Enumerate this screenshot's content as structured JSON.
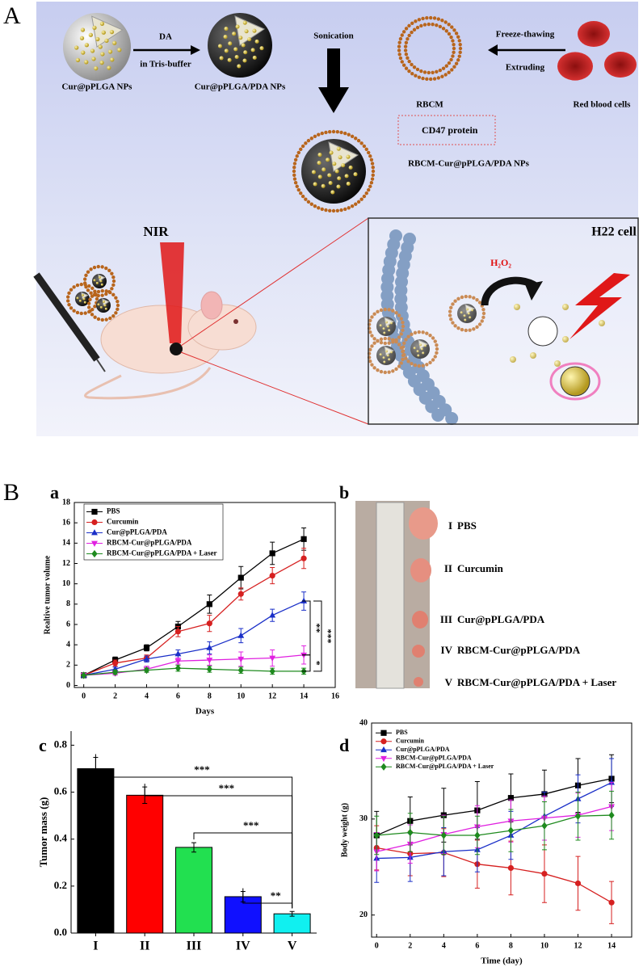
{
  "figure": {
    "panel_A": "A",
    "panel_B": "B",
    "panel_a": "a",
    "panel_b": "b",
    "panel_c": "c",
    "panel_d": "d"
  },
  "schematic": {
    "np1": "Cur@pPLGA NPs",
    "da": "DA",
    "buffer": "in Tris-buffer",
    "np2": "Cur@pPLGA/PDA NPs",
    "sonication": "Sonication",
    "rbcm": "RBCM",
    "freeze": "Freeze-thawing",
    "extruding": "Extruding",
    "rbc": "Red blood cells",
    "cd47": "CD47 protein",
    "np3": "RBCM-Cur@pPLGA/PDA NPs",
    "nir": "NIR",
    "cell": "H22 cell",
    "h2o2": "H₂O₂"
  },
  "photo": {
    "groups": [
      {
        "numeral": "I",
        "name": "PBS"
      },
      {
        "numeral": "II",
        "name": "Curcumin"
      },
      {
        "numeral": "III",
        "name": "Cur@pPLGA/PDA"
      },
      {
        "numeral": "IV",
        "name": "RBCM-Cur@pPLGA/PDA"
      },
      {
        "numeral": "V",
        "name": "RBCM-Cur@pPLGA/PDA + Laser"
      }
    ]
  },
  "chart_data": [
    {
      "type": "line",
      "xlabel": "Days",
      "ylabel": "Realtive tumor volume",
      "x": [
        0,
        2,
        4,
        6,
        8,
        10,
        12,
        14
      ],
      "xlim": [
        -0.6,
        16
      ],
      "xticks": [
        0,
        2,
        4,
        6,
        8,
        10,
        12,
        14,
        16
      ],
      "ylim": [
        -0.2,
        18
      ],
      "yticks": [
        0,
        2,
        4,
        6,
        8,
        10,
        12,
        14,
        16,
        18
      ],
      "legend": "upper left",
      "series": [
        {
          "name": "PBS",
          "color": "#000000",
          "marker": "square",
          "values": [
            1,
            2.5,
            3.7,
            5.8,
            8.0,
            10.6,
            13.0,
            14.4
          ],
          "errors": [
            0,
            0.3,
            0.3,
            0.5,
            0.9,
            1.1,
            1.1,
            1.1
          ]
        },
        {
          "name": "Curcumin",
          "color": "#d62020",
          "marker": "circle",
          "values": [
            1,
            2.2,
            2.7,
            5.3,
            6.1,
            9.0,
            10.8,
            12.5
          ],
          "errors": [
            0,
            0.3,
            0.3,
            0.5,
            0.8,
            0.6,
            0.8,
            1.0
          ]
        },
        {
          "name": "Cur@pPLGA/PDA",
          "color": "#1a2fc8",
          "marker": "triangle",
          "values": [
            1,
            1.6,
            2.6,
            3.1,
            3.7,
            4.9,
            6.9,
            8.3
          ],
          "errors": [
            0,
            0.2,
            0.3,
            0.4,
            0.6,
            0.7,
            0.6,
            0.9
          ]
        },
        {
          "name": "RBCM-Cur@pPLGA/PDA",
          "color": "#e020e0",
          "marker": "triangle-down",
          "values": [
            1,
            1.2,
            1.6,
            2.4,
            2.5,
            2.6,
            2.7,
            3.0
          ],
          "errors": [
            0,
            0.2,
            0.3,
            0.3,
            0.5,
            0.7,
            0.8,
            0.9
          ]
        },
        {
          "name": "RBCM-Cur@pPLGA/PDA + Laser",
          "color": "#1e8a1e",
          "marker": "diamond",
          "values": [
            1,
            1.3,
            1.5,
            1.7,
            1.6,
            1.5,
            1.4,
            1.4
          ],
          "errors": [
            0,
            0.2,
            0.2,
            0.3,
            0.3,
            0.3,
            0.3,
            0.3
          ]
        }
      ],
      "annotations": [
        "**",
        "*",
        "***"
      ]
    },
    {
      "type": "bar",
      "ylabel": "Tumor mass (g)",
      "categories": [
        "I",
        "II",
        "III",
        "IV",
        "V"
      ],
      "values": [
        0.7,
        0.587,
        0.365,
        0.155,
        0.082
      ],
      "errors": [
        0.048,
        0.035,
        0.02,
        0.022,
        0.01
      ],
      "colors": [
        "#000000",
        "#ff0000",
        "#22e050",
        "#1010ff",
        "#10f0f0"
      ],
      "ylim": [
        0,
        0.86
      ],
      "yticks": [
        {
          "value": 0,
          "label": "0.0"
        },
        0.2,
        0.4,
        0.6,
        0.8
      ],
      "annotations": [
        "***",
        "***",
        "***",
        "**"
      ]
    },
    {
      "type": "line",
      "xlabel": "Time (day)",
      "ylabel": "Body weight (g)",
      "x": [
        0,
        2,
        4,
        6,
        8,
        10,
        12,
        14
      ],
      "xlim": [
        -0.3,
        15.2
      ],
      "xticks": [
        0,
        2,
        4,
        6,
        8,
        10,
        12,
        14
      ],
      "ylim": [
        17.7,
        40
      ],
      "yticks": [
        20,
        30,
        40
      ],
      "legend": "upper left",
      "series": [
        {
          "name": "PBS",
          "color": "#000000",
          "marker": "square",
          "values": [
            28.3,
            29.8,
            30.4,
            30.9,
            32.2,
            32.6,
            33.5,
            34.2
          ],
          "errors": [
            2.5,
            2.5,
            2.8,
            3.0,
            2.5,
            2.5,
            2.8,
            2.5
          ]
        },
        {
          "name": "Curcumin",
          "color": "#d62020",
          "marker": "circle",
          "values": [
            27.0,
            26.4,
            26.5,
            25.3,
            24.9,
            24.3,
            23.3,
            21.3
          ],
          "errors": [
            2.3,
            2.3,
            2.5,
            2.5,
            2.8,
            3.0,
            2.8,
            2.2
          ]
        },
        {
          "name": "Cur@pPLGA/PDA",
          "color": "#1a2fc8",
          "marker": "triangle",
          "values": [
            25.9,
            26.0,
            26.6,
            26.8,
            28.3,
            30.3,
            32.1,
            33.8
          ],
          "errors": [
            2.5,
            2.5,
            2.5,
            2.3,
            2.5,
            2.5,
            2.5,
            2.5
          ]
        },
        {
          "name": "RBCM-Cur@pPLGA/PDA",
          "color": "#e020e0",
          "marker": "triangle-down",
          "values": [
            26.6,
            27.4,
            28.4,
            29.2,
            29.8,
            30.1,
            30.4,
            31.3
          ],
          "errors": [
            2.0,
            2.0,
            2.0,
            2.2,
            2.2,
            2.3,
            2.3,
            2.5
          ]
        },
        {
          "name": "RBCM-Cur@pPLGA/PDA + Laser",
          "color": "#1e8a1e",
          "marker": "diamond",
          "values": [
            28.3,
            28.6,
            28.3,
            28.3,
            28.8,
            29.3,
            30.3,
            30.4
          ],
          "errors": [
            2.0,
            2.0,
            2.0,
            2.0,
            2.2,
            2.5,
            2.5,
            2.5
          ]
        }
      ]
    }
  ]
}
